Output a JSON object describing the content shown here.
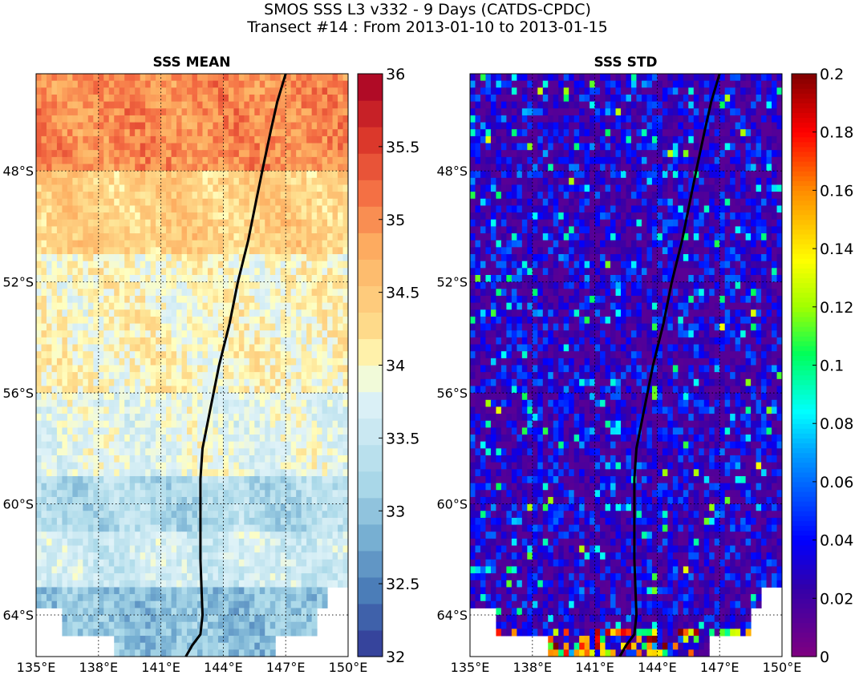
{
  "figure": {
    "title_line1": "SMOS SSS L3 v332 - 9 Days (CATDS-CPDC)",
    "title_line2": "Transect #14 : From 2013-01-10 to 2013-01-15"
  },
  "chart_data": [
    {
      "type": "heatmap",
      "title": "SSS MEAN",
      "xlim": [
        135,
        150
      ],
      "ylim": [
        -65.5,
        -44.5
      ],
      "x_ticks": [
        135,
        138,
        141,
        144,
        147,
        150
      ],
      "x_tick_labels": [
        "135°E",
        "138°E",
        "141°E",
        "144°E",
        "147°E",
        "150°E"
      ],
      "y_ticks": [
        -48,
        -52,
        -56,
        -60,
        -64
      ],
      "y_tick_labels": [
        "48°S",
        "52°S",
        "56°S",
        "60°S",
        "64°S"
      ],
      "grid": true,
      "colorbar": {
        "range": [
          32,
          36
        ],
        "ticks": [
          32,
          32.5,
          33,
          33.5,
          34,
          34.5,
          35,
          35.5,
          36
        ],
        "tick_labels": [
          "32",
          "32.5",
          "33",
          "33.5",
          "34",
          "34.5",
          "35",
          "35.5",
          "36"
        ],
        "levels": 22,
        "colormap": "RdYlBu_r"
      },
      "latitude_bands": [
        {
          "lat_range": [
            -48,
            -44.5
          ],
          "mean": 35.0
        },
        {
          "lat_range": [
            -51,
            -48
          ],
          "mean": 34.4
        },
        {
          "lat_range": [
            -56,
            -51
          ],
          "mean": 34.0
        },
        {
          "lat_range": [
            -59,
            -56
          ],
          "mean": 33.8
        },
        {
          "lat_range": [
            -61,
            -59
          ],
          "mean": 33.3
        },
        {
          "lat_range": [
            -63,
            -61
          ],
          "mean": 33.6
        },
        {
          "lat_range": [
            -65.5,
            -63
          ],
          "mean": 33.0
        }
      ]
    },
    {
      "type": "heatmap",
      "title": "SSS STD",
      "xlim": [
        135,
        150
      ],
      "ylim": [
        -65.5,
        -44.5
      ],
      "x_ticks": [
        135,
        138,
        141,
        144,
        147,
        150
      ],
      "x_tick_labels": [
        "135°E",
        "138°E",
        "141°E",
        "144°E",
        "147°E",
        "150°E"
      ],
      "y_ticks": [
        -48,
        -52,
        -56,
        -60,
        -64
      ],
      "y_tick_labels": [
        "48°S",
        "52°S",
        "56°S",
        "60°S",
        "64°S"
      ],
      "grid": true,
      "colorbar": {
        "range": [
          0,
          0.2
        ],
        "ticks": [
          0,
          0.02,
          0.04,
          0.06,
          0.08,
          0.1,
          0.12,
          0.14,
          0.16,
          0.18,
          0.2
        ],
        "tick_labels": [
          "0",
          "0.02",
          "0.04",
          "0.06",
          "0.08",
          "0.1",
          "0.12",
          "0.14",
          "0.16",
          "0.18",
          "0.2"
        ],
        "colormap": "jet-purple"
      },
      "typical_std": 0.04
    }
  ],
  "transect": {
    "lon": [
      142.2,
      142.5,
      142.9,
      143.0,
      142.9,
      142.9,
      142.9,
      143.0,
      143.4,
      143.8,
      144.3,
      144.7,
      145.2,
      145.6,
      145.9,
      146.3,
      146.6,
      147.0
    ],
    "lat": [
      -65.5,
      -65.1,
      -64.7,
      -64.0,
      -62.0,
      -60.0,
      -59.1,
      -58.0,
      -56.5,
      -55.0,
      -53.5,
      -52.0,
      -50.5,
      -49.0,
      -47.9,
      -46.5,
      -45.5,
      -44.5
    ]
  },
  "legend": {
    "shown": false
  }
}
